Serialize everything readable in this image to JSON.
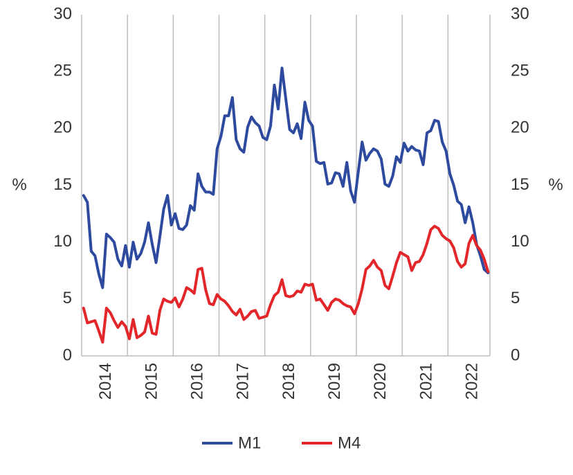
{
  "chart_data": {
    "type": "line",
    "ylabel": "%",
    "y2label": "%",
    "categories": [
      null,
      null,
      null,
      null,
      null,
      null,
      "2014",
      null,
      null,
      null,
      null,
      null,
      null,
      null,
      null,
      null,
      null,
      null,
      "2015",
      null,
      null,
      null,
      null,
      null,
      null,
      null,
      null,
      null,
      null,
      null,
      "2016",
      null,
      null,
      null,
      null,
      null,
      null,
      null,
      null,
      null,
      null,
      null,
      "2017",
      null,
      null,
      null,
      null,
      null,
      null,
      null,
      null,
      null,
      null,
      null,
      "2018",
      null,
      null,
      null,
      null,
      null,
      null,
      null,
      null,
      null,
      null,
      null,
      "2019",
      null,
      null,
      null,
      null,
      null,
      null,
      null,
      null,
      null,
      null,
      null,
      "2020",
      null,
      null,
      null,
      null,
      null,
      null,
      null,
      null,
      null,
      null,
      null,
      "2021",
      null,
      null,
      null,
      null,
      null,
      null,
      null,
      null,
      null,
      null,
      null,
      "2022",
      null,
      null,
      null,
      null
    ],
    "series": [
      {
        "name": "M1",
        "color": "#2e4a9e",
        "values": [
          14.1,
          13.5,
          9.2,
          8.8,
          7.2,
          6.0,
          10.7,
          10.4,
          10.0,
          8.5,
          7.9,
          9.7,
          7.8,
          10.0,
          8.5,
          9.0,
          10.0,
          11.7,
          9.8,
          8.2,
          10.5,
          12.9,
          14.1,
          11.5,
          12.5,
          11.2,
          11.1,
          11.5,
          13.2,
          12.8,
          16.0,
          14.9,
          14.4,
          14.4,
          14.2,
          18.2,
          19.3,
          21.1,
          21.1,
          22.7,
          19.0,
          18.2,
          17.9,
          20.1,
          21.0,
          20.5,
          20.2,
          19.2,
          19.0,
          20.2,
          23.8,
          21.7,
          25.3,
          22.6,
          19.9,
          19.6,
          20.4,
          19.1,
          22.3,
          20.7,
          20.2,
          17.1,
          16.9,
          17.0,
          15.1,
          15.2,
          16.1,
          16.0,
          14.9,
          17.0,
          14.5,
          13.5,
          16.2,
          18.8,
          17.2,
          17.8,
          18.2,
          18.0,
          17.3,
          15.1,
          14.9,
          15.8,
          17.5,
          17.0,
          18.7,
          18.0,
          18.4,
          18.1,
          18.0,
          16.8,
          19.6,
          19.8,
          20.7,
          20.6,
          18.8,
          18.0,
          16.0,
          15.0,
          13.6,
          13.3,
          11.7,
          13.1,
          11.7,
          9.8,
          8.8,
          7.6,
          7.3
        ]
      },
      {
        "name": "M4",
        "color": "#e3262a",
        "values": [
          4.2,
          2.9,
          3.0,
          3.1,
          2.2,
          1.2,
          4.2,
          3.8,
          3.1,
          2.5,
          3.0,
          2.6,
          1.5,
          3.2,
          1.6,
          1.8,
          2.1,
          3.5,
          2.0,
          1.9,
          4.0,
          5.0,
          4.8,
          4.7,
          5.1,
          4.3,
          5.0,
          6.0,
          5.8,
          5.5,
          7.6,
          7.7,
          5.8,
          4.6,
          4.5,
          5.4,
          5.0,
          4.8,
          4.4,
          3.9,
          3.6,
          4.1,
          3.2,
          3.5,
          3.9,
          4.0,
          3.3,
          3.4,
          3.5,
          4.5,
          5.3,
          5.6,
          6.7,
          5.3,
          5.2,
          5.3,
          5.7,
          5.6,
          6.3,
          6.2,
          6.3,
          4.9,
          5.0,
          4.5,
          4.0,
          4.7,
          5.0,
          4.9,
          4.6,
          4.4,
          4.3,
          3.7,
          4.6,
          5.9,
          7.6,
          7.9,
          8.4,
          7.8,
          7.5,
          6.2,
          5.9,
          7.0,
          8.2,
          9.1,
          8.9,
          8.7,
          7.5,
          8.2,
          8.3,
          8.9,
          9.9,
          11.1,
          11.4,
          11.2,
          10.6,
          10.3,
          10.1,
          9.5,
          8.3,
          7.8,
          8.1,
          9.9,
          10.6,
          9.7,
          9.3,
          8.5,
          7.4
        ]
      }
    ],
    "ylim": [
      0,
      30
    ],
    "yticks": [
      0,
      5,
      10,
      15,
      20,
      25,
      30
    ],
    "y2lim": [
      0,
      30
    ],
    "y2ticks": [
      0,
      5,
      10,
      15,
      20,
      25,
      30
    ],
    "legend": "bottom"
  }
}
